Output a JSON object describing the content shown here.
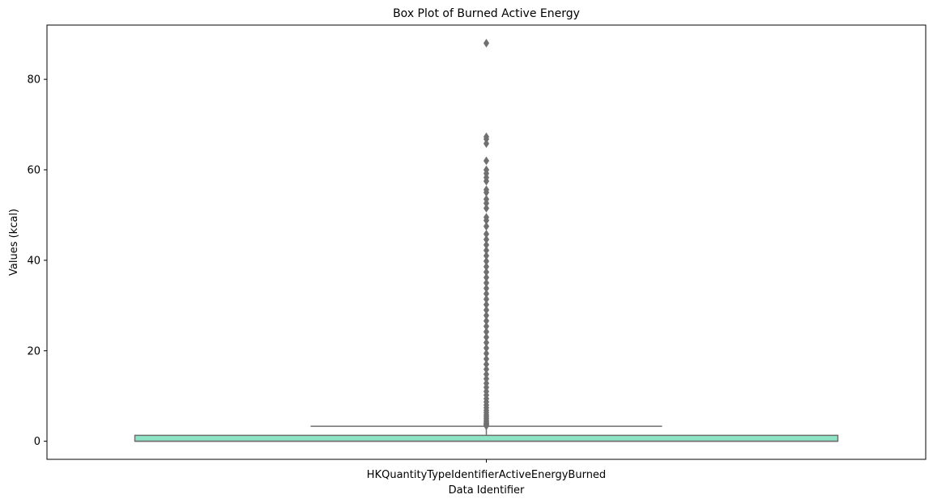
{
  "chart_data": {
    "type": "box",
    "title": "Box Plot of Burned Active Energy",
    "xlabel": "Data Identifier",
    "ylabel": "Values (kcal)",
    "categories": [
      "HKQuantityTypeIdentifierActiveEnergyBurned"
    ],
    "ylim": [
      -4,
      92
    ],
    "yticks": [
      0,
      20,
      40,
      60,
      80
    ],
    "box": {
      "min": 0.0,
      "q1": 0.0,
      "median": 0.0,
      "q3": 1.3,
      "max": 3.3
    },
    "outliers": [
      3.4,
      3.6,
      3.8,
      4.0,
      4.3,
      4.6,
      5.0,
      5.4,
      5.8,
      6.3,
      6.8,
      7.4,
      8.0,
      8.7,
      9.4,
      10.2,
      11.0,
      11.9,
      12.8,
      13.8,
      14.8,
      15.9,
      17.0,
      18.2,
      19.4,
      20.6,
      21.8,
      23.0,
      24.2,
      25.4,
      26.6,
      27.8,
      29.0,
      30.2,
      31.4,
      32.6,
      33.8,
      35.0,
      36.2,
      37.4,
      38.6,
      39.8,
      41.0,
      42.2,
      43.4,
      44.6,
      45.8,
      47.5,
      48.8,
      49.5,
      51.5,
      52.6,
      53.5,
      55.0,
      55.6,
      57.5,
      58.3,
      59.2,
      60.0,
      62.0,
      65.8,
      66.8,
      67.3,
      88.0
    ],
    "colors": {
      "box_fill": "#8ee5c6",
      "box_edge": "#6e6e6e",
      "outlier": "#707070"
    },
    "grid": false,
    "legend": "none"
  }
}
